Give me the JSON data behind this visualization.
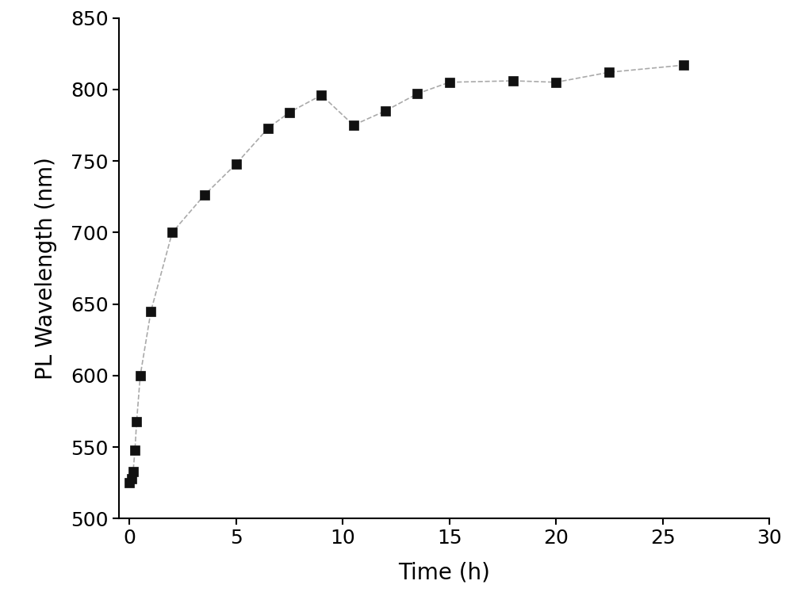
{
  "x": [
    0.0,
    0.083,
    0.167,
    0.25,
    0.33,
    0.5,
    1.0,
    2.0,
    3.5,
    5.0,
    6.5,
    7.5,
    9.0,
    10.5,
    12.0,
    13.5,
    15.0,
    18.0,
    20.0,
    22.5,
    26.0
  ],
  "y": [
    525,
    528,
    533,
    548,
    568,
    600,
    645,
    700,
    726,
    748,
    773,
    784,
    796,
    775,
    785,
    797,
    805,
    806,
    805,
    812,
    817
  ],
  "xlabel": "Time (h)",
  "ylabel": "PL Wavelength (nm)",
  "xlim": [
    -0.5,
    30
  ],
  "ylim": [
    500,
    850
  ],
  "xticks": [
    0,
    5,
    10,
    15,
    20,
    25,
    30
  ],
  "yticks": [
    500,
    550,
    600,
    650,
    700,
    750,
    800,
    850
  ],
  "line_color": "#aaaaaa",
  "marker_color": "#111111",
  "marker_size": 8,
  "line_width": 1.2,
  "line_style": "--"
}
